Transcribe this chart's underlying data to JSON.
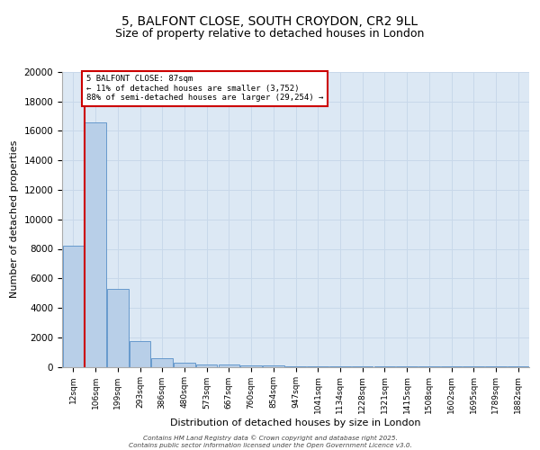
{
  "title1": "5, BALFONT CLOSE, SOUTH CROYDON, CR2 9LL",
  "title2": "Size of property relative to detached houses in London",
  "xlabel": "Distribution of detached houses by size in London",
  "ylabel": "Number of detached properties",
  "categories": [
    "12sqm",
    "106sqm",
    "199sqm",
    "293sqm",
    "386sqm",
    "480sqm",
    "573sqm",
    "667sqm",
    "760sqm",
    "854sqm",
    "947sqm",
    "1041sqm",
    "1134sqm",
    "1228sqm",
    "1321sqm",
    "1415sqm",
    "1508sqm",
    "1602sqm",
    "1695sqm",
    "1789sqm",
    "1882sqm"
  ],
  "values": [
    8200,
    16600,
    5300,
    1750,
    600,
    280,
    180,
    130,
    100,
    75,
    55,
    45,
    35,
    28,
    20,
    15,
    10,
    8,
    5,
    4,
    2
  ],
  "bar_color": "#b8cfe8",
  "bar_edge_color": "#6699cc",
  "vline_color": "#cc0000",
  "annotation_text": "5 BALFONT CLOSE: 87sqm\n← 11% of detached houses are smaller (3,752)\n88% of semi-detached houses are larger (29,254) →",
  "annotation_box_color": "#cc0000",
  "ylim": [
    0,
    20000
  ],
  "yticks": [
    0,
    2000,
    4000,
    6000,
    8000,
    10000,
    12000,
    14000,
    16000,
    18000,
    20000
  ],
  "grid_color": "#c8d8ea",
  "background_color": "#dce8f4",
  "footer1": "Contains HM Land Registry data © Crown copyright and database right 2025.",
  "footer2": "Contains public sector information licensed under the Open Government Licence v3.0."
}
